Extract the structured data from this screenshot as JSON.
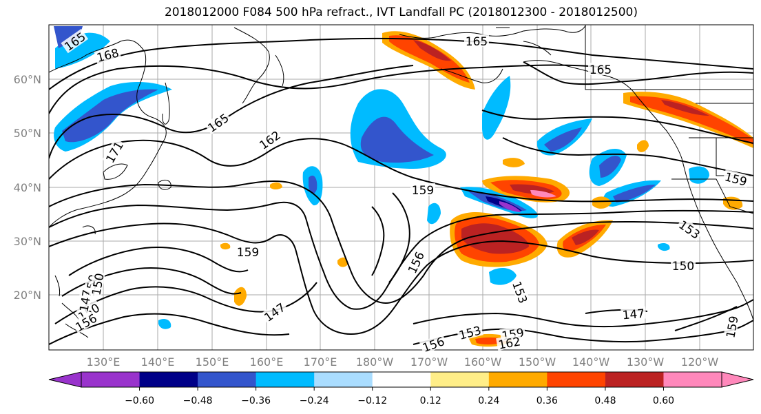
{
  "title": "2018012000 F084 500 hPa refract., IVT Landfall PC (2018012300 - 2018012500)",
  "map": {
    "lat_ticks": [
      "60°N",
      "50°N",
      "40°N",
      "30°N",
      "20°N"
    ],
    "lon_ticks": [
      "130°E",
      "140°E",
      "150°E",
      "160°E",
      "170°E",
      "180°W",
      "170°W",
      "160°W",
      "150°W",
      "140°W",
      "130°W",
      "120°W"
    ],
    "contour_labels": [
      "165",
      "168",
      "165",
      "165",
      "162",
      "171",
      "165",
      "159",
      "159",
      "153",
      "150",
      "156",
      "153",
      "150",
      "147",
      "147",
      "150",
      "153",
      "156",
      "159",
      "162",
      "159",
      "147",
      "150",
      "156",
      "159"
    ]
  },
  "colorbar": {
    "colors": [
      "#9933cc",
      "#000088",
      "#3355cc",
      "#00bbff",
      "#aaddff",
      "#ffffff",
      "#ffee88",
      "#ffaa00",
      "#ff4400",
      "#bb2222",
      "#ff88bb"
    ],
    "labels": [
      "−0.60",
      "−0.48",
      "−0.36",
      "−0.24",
      "−0.12",
      "0.12",
      "0.24",
      "0.36",
      "0.48",
      "0.60"
    ]
  }
}
